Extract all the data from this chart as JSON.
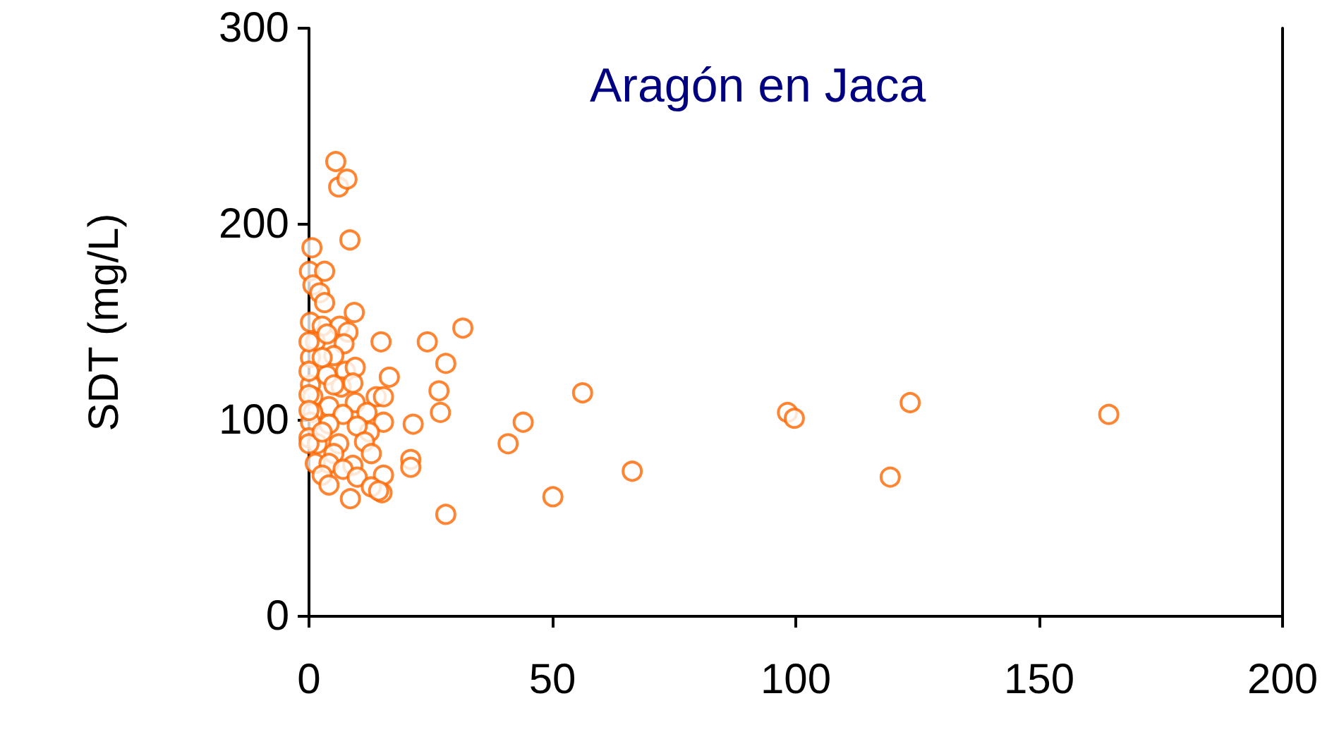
{
  "chart_data": {
    "type": "scatter",
    "ylabel": "SDT (mg/L)",
    "annotations": [
      "Aragón en Jaca"
    ],
    "xlim": [
      0,
      200
    ],
    "xticks": [
      0,
      50,
      100,
      150,
      200
    ],
    "ylim": [
      0,
      300
    ],
    "yticks": [
      0,
      100,
      200,
      300
    ],
    "grid": false,
    "marker": "circle",
    "series": [
      {
        "color": "#ff6600",
        "x": [
          5.5,
          6.1,
          7.8,
          8.4,
          0.6,
          9.3,
          14.8,
          24.3,
          31.6,
          28.1,
          26.7,
          16.5,
          27,
          21.4,
          20.9,
          20.9,
          28.1,
          15,
          40.9,
          44,
          50.1,
          56.2,
          66.4,
          98.3,
          99.7,
          123.5,
          119.4,
          164.3,
          0.1,
          3.2,
          0.8,
          2.2,
          3.2,
          0.3,
          2.7,
          6.3,
          8,
          1.3,
          7.2,
          5.1,
          0.3,
          3.7,
          7.5,
          9.5,
          0.3,
          6.6,
          9,
          13.8,
          15.3,
          0.8,
          4.1,
          9.5,
          0.8,
          7,
          11.9,
          4.1,
          0.3,
          15.3,
          12.4,
          9.9,
          0,
          1.7,
          6.1,
          11.4,
          5.1,
          12.8,
          1.3,
          9,
          4.1,
          2.7,
          7,
          9.9,
          15.3,
          4.1,
          12.8,
          14.3,
          8.5,
          0,
          0,
          0,
          0,
          0,
          2.7,
          3.7,
          5.1,
          2.7
        ],
        "values": [
          232,
          219,
          223,
          192,
          188,
          155,
          140,
          140,
          147,
          129,
          115,
          122,
          104,
          98,
          80,
          76,
          52,
          63,
          88,
          99,
          61,
          114,
          74,
          104,
          101,
          109,
          71,
          103,
          176,
          176,
          169,
          165,
          160,
          150,
          148,
          148,
          145,
          140,
          139,
          133,
          132,
          123,
          125,
          127,
          118,
          117,
          119,
          112,
          112,
          112,
          107,
          109,
          104,
          103,
          104,
          98,
          99,
          99,
          94,
          97,
          91,
          88,
          88,
          89,
          83,
          83,
          78,
          77,
          78,
          72,
          75,
          71,
          72,
          67,
          66,
          64,
          60,
          140,
          125,
          113,
          105,
          88,
          132,
          144,
          118,
          94
        ]
      }
    ]
  }
}
